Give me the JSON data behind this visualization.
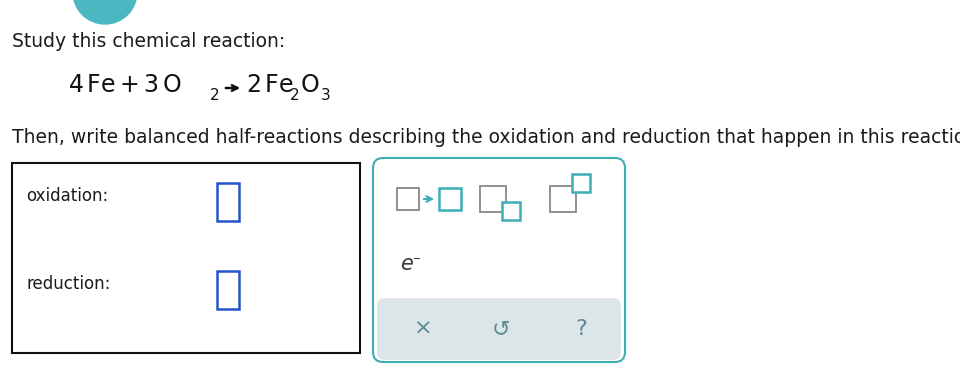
{
  "bg_color": "#ffffff",
  "title_text": "Study this chemical reaction:",
  "title_color": "#1a1a1a",
  "title_fontsize": 13.5,
  "instruction_text": "Then, write balanced half-reactions describing the oxidation and reduction that happen in this reaction.",
  "instruction_color": "#1a1a1a",
  "instruction_fontsize": 13.5,
  "oxidation_label": "oxidation:",
  "reduction_label": "reduction:",
  "label_color": "#1a1a1a",
  "label_fontsize": 12,
  "input_box_color": "#2255cc",
  "teal_color": "#3dadb8",
  "gray_color": "#888888",
  "bottom_bar_color": "#dce6e8",
  "symbol_color": "#5a8a96",
  "teal_circle_color": "#4ab8c1"
}
